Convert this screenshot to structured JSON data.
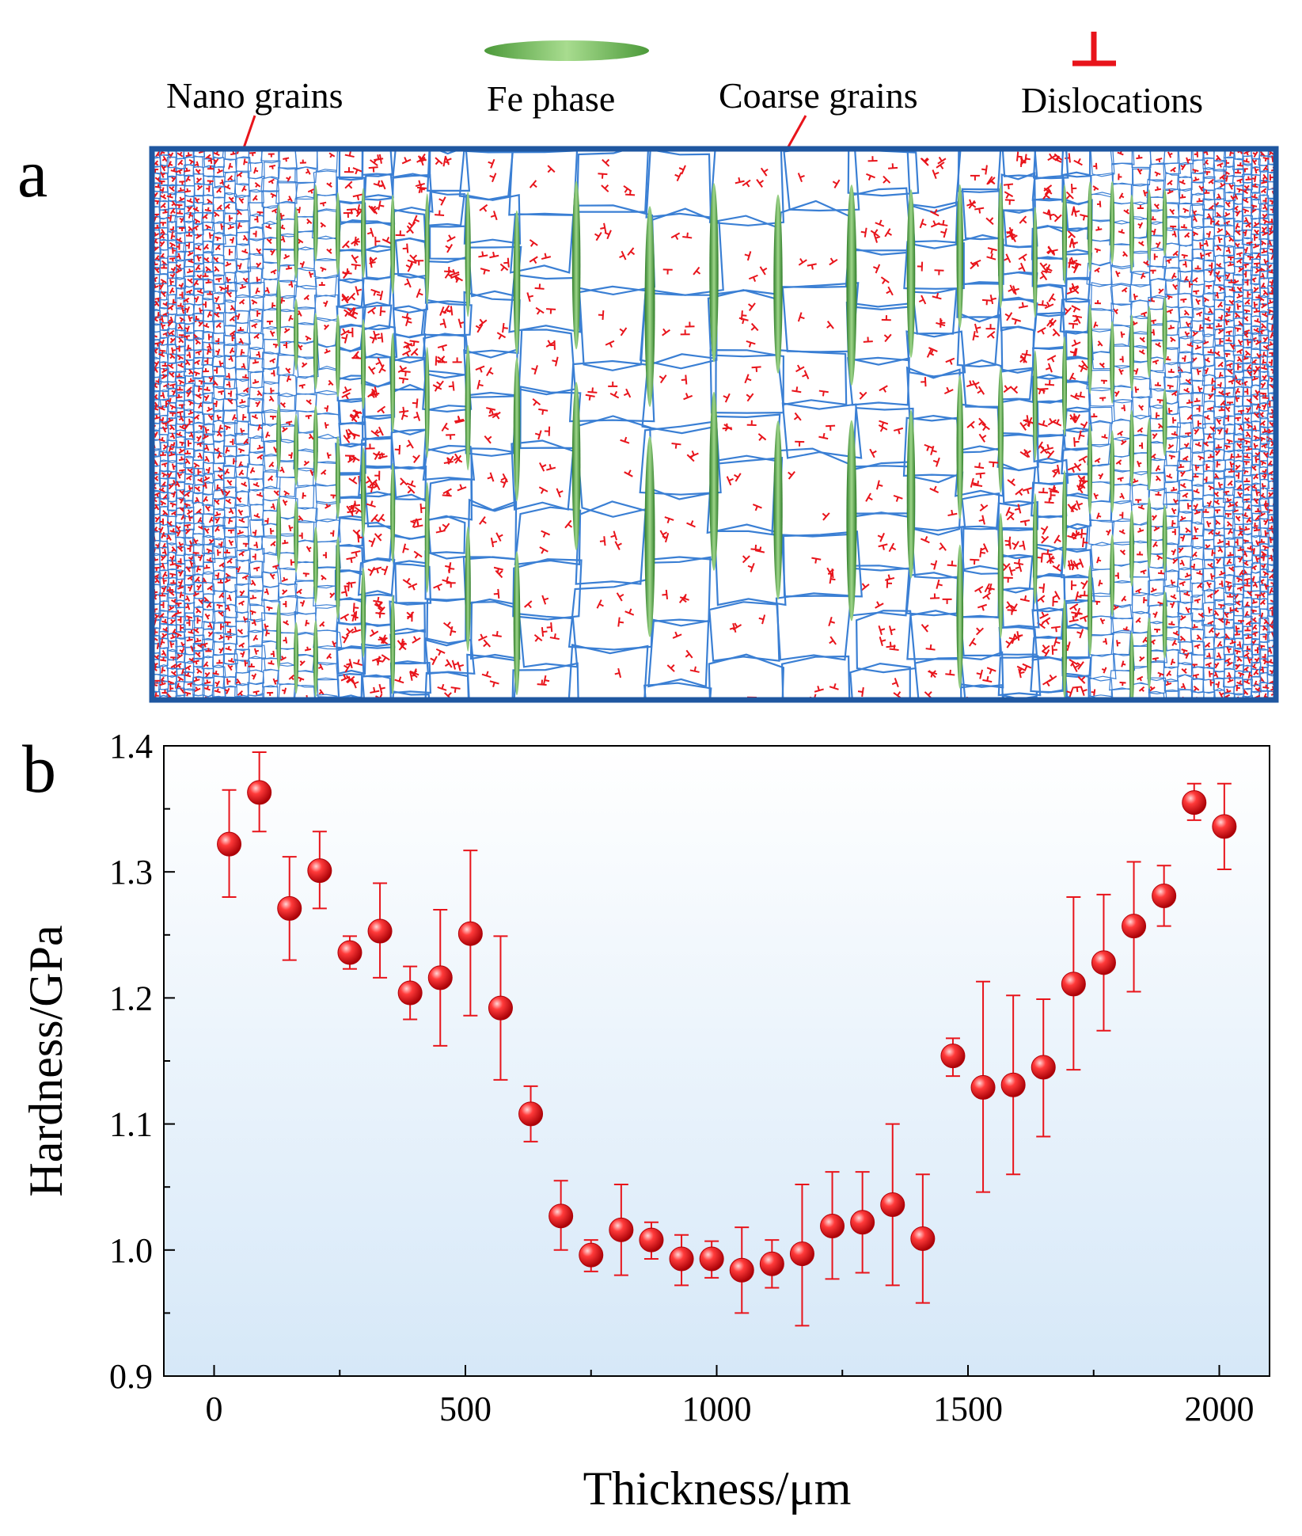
{
  "panel_a": {
    "label": "a",
    "legend": {
      "nano_grains": "Nano grains",
      "fe_phase": "Fe phase",
      "coarse_grains": "Coarse grains",
      "dislocations": "Dislocations"
    },
    "colors": {
      "frame": "#1f57a0",
      "grain_boundary": "#3a7fd4",
      "fe_phase": "#4f9f3c",
      "dislocation": "#e8141b"
    }
  },
  "chart_data": {
    "type": "scatter",
    "panel_label": "b",
    "title": "",
    "xlabel": "Thickness/μm",
    "ylabel": "Hardness/GPa",
    "xlim": [
      -100,
      2100
    ],
    "ylim": [
      0.9,
      1.4
    ],
    "xticks": [
      0,
      500,
      1000,
      1500,
      2000
    ],
    "yticks": [
      0.9,
      1.0,
      1.1,
      1.2,
      1.3,
      1.4
    ],
    "xtick_labels": [
      "0",
      "500",
      "1000",
      "1500",
      "2000"
    ],
    "ytick_labels": [
      "0.9",
      "1.0",
      "1.1",
      "1.2",
      "1.3",
      "1.4"
    ],
    "series": [
      {
        "name": "Hardness",
        "color": "#e8141b",
        "x": [
          30,
          90,
          150,
          210,
          270,
          330,
          390,
          450,
          510,
          570,
          630,
          690,
          750,
          810,
          870,
          930,
          990,
          1050,
          1110,
          1170,
          1230,
          1290,
          1350,
          1410,
          1470,
          1530,
          1590,
          1650,
          1710,
          1770,
          1830,
          1890,
          1950,
          2010
        ],
        "y": [
          1.322,
          1.363,
          1.271,
          1.301,
          1.236,
          1.253,
          1.204,
          1.216,
          1.251,
          1.192,
          1.108,
          1.027,
          0.996,
          1.016,
          1.008,
          0.993,
          0.993,
          0.984,
          0.989,
          0.997,
          1.019,
          1.022,
          1.036,
          1.009,
          1.154,
          1.129,
          1.131,
          1.145,
          1.211,
          1.228,
          1.257,
          1.281,
          1.355,
          1.336
        ],
        "yerr_low": [
          1.28,
          1.332,
          1.23,
          1.271,
          1.223,
          1.216,
          1.183,
          1.162,
          1.186,
          1.135,
          1.086,
          1.0,
          0.983,
          0.98,
          0.993,
          0.972,
          0.978,
          0.95,
          0.97,
          0.94,
          0.977,
          0.982,
          0.972,
          0.958,
          1.138,
          1.046,
          1.06,
          1.09,
          1.143,
          1.174,
          1.205,
          1.257,
          1.341,
          1.302
        ],
        "yerr_high": [
          1.365,
          1.395,
          1.312,
          1.332,
          1.249,
          1.291,
          1.225,
          1.27,
          1.317,
          1.249,
          1.13,
          1.055,
          1.008,
          1.052,
          1.022,
          1.012,
          1.007,
          1.018,
          1.008,
          1.052,
          1.062,
          1.062,
          1.1,
          1.06,
          1.168,
          1.213,
          1.202,
          1.199,
          1.28,
          1.282,
          1.308,
          1.305,
          1.37,
          1.37
        ]
      }
    ]
  }
}
